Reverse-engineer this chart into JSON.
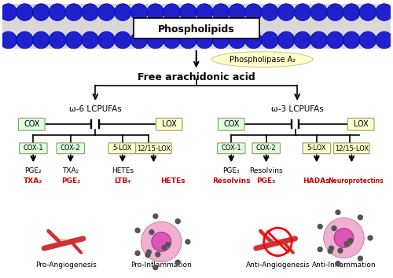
{
  "bg_color": "#ffffff",
  "membrane_color": "#d8d8d8",
  "ball_color": "#2020cc",
  "ball_outline": "#0000aa",
  "phospholipids_label": "Phospholipids",
  "phospholipase_label": "Phospholipase A₂",
  "free_aa_label": "Free arachidonic acid",
  "omega6_label": "ω-6 LCPUFAs",
  "omega3_label": "ω-3 LCPUFAs",
  "cox_label": "COX",
  "lox_label": "LOX",
  "cox1_label": "COX-1",
  "cox2_label": "COX-2",
  "slox_label": "5-LOX",
  "lox1215_label": "12/15-LOX",
  "pro_angiogenesis": "Pro-Angiogenesis",
  "pro_inflammation": "Pro-Inflammation",
  "anti_angiogenesis": "Anti-Angiogenesis",
  "anti_inflammation": "Anti-Inflammation",
  "red_color": "#cc0000",
  "green_box_color": "#ddffdd",
  "yellow_box_color": "#ffffcc",
  "w6_cox1_black": "PGE₂",
  "w6_cox1_red": "TXA₂",
  "w6_cox2_black": "TXA₂",
  "w6_cox2_red": "PGE₂",
  "w6_5lox_black": "HETEs",
  "w6_5lox_red": "LTB₄",
  "w6_1215lox_red": "HETEs",
  "w3_cox1_black": "PGE₃",
  "w3_cox1_red": "Resolvins",
  "w3_cox2_black": "Resolvins",
  "w3_cox2_red": "PGE₃",
  "w3_5lox_red": "HADAs",
  "w3_1215lox_red": "Neuroprotectins"
}
